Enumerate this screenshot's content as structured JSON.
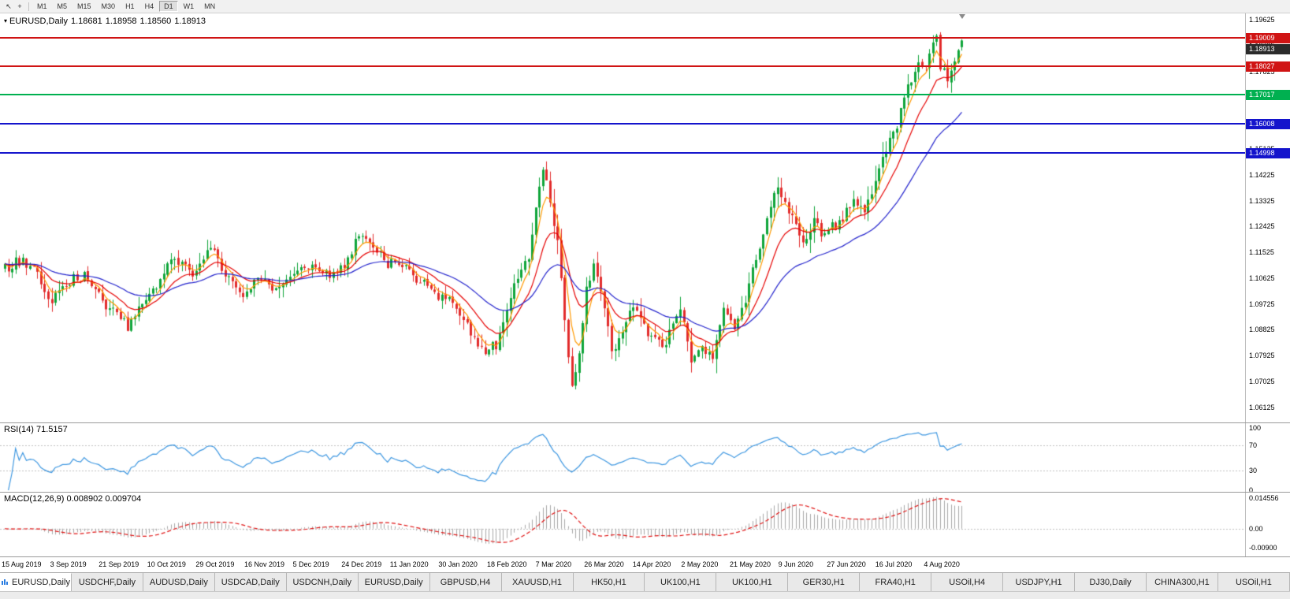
{
  "icons": {
    "cursor": "↖",
    "crosshair": "+",
    "chart_dropdown": "▾"
  },
  "toolbar": {
    "timeframes": [
      "M1",
      "M5",
      "M15",
      "M30",
      "H1",
      "H4",
      "D1",
      "W1",
      "MN"
    ],
    "active_timeframe": "D1"
  },
  "chart": {
    "symbol_label": "EURUSD,Daily",
    "ohlc": {
      "open": "1.18681",
      "high": "1.18958",
      "low": "1.18560",
      "close": "1.18913"
    },
    "price_axis_ticks": [
      {
        "label": "1.19625",
        "value": 1.19625
      },
      {
        "label": "1.18725",
        "value": 1.18725
      },
      {
        "label": "1.17825",
        "value": 1.17825
      },
      {
        "label": "1.16925",
        "value": 1.16925
      },
      {
        "label": "1.16025",
        "value": 1.16025
      },
      {
        "label": "1.15125",
        "value": 1.15125
      },
      {
        "label": "1.14225",
        "value": 1.14225
      },
      {
        "label": "1.13325",
        "value": 1.13325
      },
      {
        "label": "1.12425",
        "value": 1.12425
      },
      {
        "label": "1.11525",
        "value": 1.11525
      },
      {
        "label": "1.10625",
        "value": 1.10625
      },
      {
        "label": "1.09725",
        "value": 1.09725
      },
      {
        "label": "1.08825",
        "value": 1.08825
      },
      {
        "label": "1.07925",
        "value": 1.07925
      },
      {
        "label": "1.07025",
        "value": 1.07025
      },
      {
        "label": "1.06125",
        "value": 1.06125
      }
    ],
    "hlines": [
      {
        "label": "1.19009",
        "value": 1.19009,
        "color": "#d01414"
      },
      {
        "label": "1.18027",
        "value": 1.18027,
        "color": "#d01414"
      },
      {
        "label": "1.17017",
        "value": 1.17017,
        "color": "#00b050"
      },
      {
        "label": "1.16008",
        "value": 1.16008,
        "color": "#1414cc"
      },
      {
        "label": "1.14998",
        "value": 1.14998,
        "color": "#1414cc"
      }
    ],
    "current_price_tag": {
      "label": "1.18913",
      "value": 1.18913,
      "bg": "#2b2b2b"
    },
    "indicators": {
      "rsi": {
        "label": "RSI(14) 71.5157",
        "color": "#3c96e0",
        "axis": [
          {
            "label": "100",
            "value": 100
          },
          {
            "label": "70",
            "value": 70
          },
          {
            "label": "30",
            "value": 30
          },
          {
            "label": "0",
            "value": 0
          }
        ],
        "levels": [
          70,
          30
        ]
      },
      "macd": {
        "label": "MACD(12,26,9) 0.008902 0.009704",
        "hist_color": "#a8a8a8",
        "signal_color": "#e01414",
        "axis": [
          {
            "label": "0.014556",
            "value": 0.014556
          },
          {
            "label": "0.00",
            "value": 0
          },
          {
            "label": "-0.00900",
            "value": -0.009
          }
        ]
      }
    },
    "colors": {
      "up": "#0fa53a",
      "down": "#e22c2c",
      "ma_fast": "#ff9900",
      "ma_mid": "#e60000",
      "ma_slow": "#2323cc"
    }
  },
  "chart_data": {
    "type": "candlestick",
    "symbol": "EURUSD",
    "period": "Daily",
    "title": "EURUSD,Daily 1.18681 1.18958 1.18560 1.18913",
    "ohlc_current": {
      "open": 1.18681,
      "high": 1.18958,
      "low": 1.1856,
      "close": 1.18913
    },
    "num_candles": 266,
    "y_axis_range": [
      1.0565,
      1.1972
    ],
    "price_anchors": [
      [
        0,
        1.1095
      ],
      [
        4,
        1.1125
      ],
      [
        9,
        1.108
      ],
      [
        13,
        1.0975
      ],
      [
        17,
        1.104
      ],
      [
        22,
        1.1075
      ],
      [
        27,
        1.0985
      ],
      [
        31,
        1.093
      ],
      [
        34,
        1.0895
      ],
      [
        38,
        1.0975
      ],
      [
        43,
        1.1045
      ],
      [
        47,
        1.1135
      ],
      [
        52,
        1.108
      ],
      [
        57,
        1.116
      ],
      [
        61,
        1.107
      ],
      [
        66,
        1.101
      ],
      [
        71,
        1.1075
      ],
      [
        75,
        1.1015
      ],
      [
        80,
        1.108
      ],
      [
        85,
        1.111
      ],
      [
        90,
        1.1075
      ],
      [
        95,
        1.1125
      ],
      [
        98,
        1.1215
      ],
      [
        103,
        1.116
      ],
      [
        106,
        1.112
      ],
      [
        111,
        1.1095
      ],
      [
        116,
        1.1035
      ],
      [
        120,
        1.1005
      ],
      [
        126,
        1.095
      ],
      [
        130,
        1.086
      ],
      [
        133,
        1.079
      ],
      [
        137,
        1.0855
      ],
      [
        141,
        1.103
      ],
      [
        145,
        1.1135
      ],
      [
        147,
        1.129
      ],
      [
        149,
        1.144
      ],
      [
        151,
        1.132
      ],
      [
        153,
        1.1175
      ],
      [
        155,
        1.0915
      ],
      [
        157,
        1.068
      ],
      [
        159,
        1.0795
      ],
      [
        161,
        1.103
      ],
      [
        163,
        1.11
      ],
      [
        165,
        1.103
      ],
      [
        168,
        1.08
      ],
      [
        171,
        1.087
      ],
      [
        174,
        1.0975
      ],
      [
        178,
        1.0868
      ],
      [
        182,
        1.082
      ],
      [
        184,
        1.0878
      ],
      [
        187,
        1.0958
      ],
      [
        190,
        1.079
      ],
      [
        193,
        1.0818
      ],
      [
        196,
        1.0792
      ],
      [
        199,
        1.0948
      ],
      [
        202,
        1.0895
      ],
      [
        205,
        1.099
      ],
      [
        208,
        1.1135
      ],
      [
        211,
        1.125
      ],
      [
        214,
        1.139
      ],
      [
        217,
        1.1298
      ],
      [
        219,
        1.1244
      ],
      [
        221,
        1.118
      ],
      [
        224,
        1.1258
      ],
      [
        226,
        1.122
      ],
      [
        229,
        1.1242
      ],
      [
        232,
        1.1275
      ],
      [
        235,
        1.133
      ],
      [
        238,
        1.1282
      ],
      [
        241,
        1.14
      ],
      [
        244,
        1.1512
      ],
      [
        247,
        1.1592
      ],
      [
        250,
        1.1722
      ],
      [
        253,
        1.18
      ],
      [
        255,
        1.1785
      ],
      [
        257,
        1.1885
      ],
      [
        258,
        1.1902
      ],
      [
        259,
        1.181
      ],
      [
        261,
        1.1748
      ],
      [
        263,
        1.1818
      ],
      [
        265,
        1.1891
      ]
    ],
    "horizontal_levels": [
      1.19009,
      1.18027,
      1.17017,
      1.16008,
      1.14998
    ],
    "moving_averages": [
      {
        "period": 5,
        "color": "#ff9900"
      },
      {
        "period": 13,
        "color": "#e60000"
      },
      {
        "period": 34,
        "color": "#2323cc"
      }
    ],
    "rsi": {
      "period": 14,
      "current": 71.5157,
      "levels": [
        30,
        70
      ],
      "range": [
        0,
        100
      ]
    },
    "macd": {
      "fast": 12,
      "slow": 26,
      "signal": 9,
      "current_main": 0.008902,
      "current_signal": 0.009704,
      "axis_max": 0.014556,
      "axis_min": -0.009
    },
    "x_axis_dates": [
      "15 Aug 2019",
      "3 Sep 2019",
      "21 Sep 2019",
      "10 Oct 2019",
      "29 Oct 2019",
      "16 Nov 2019",
      "5 Dec 2019",
      "24 Dec 2019",
      "11 Jan 2020",
      "30 Jan 2020",
      "18 Feb 2020",
      "7 Mar 2020",
      "26 Mar 2020",
      "14 Apr 2020",
      "2 May 2020",
      "21 May 2020",
      "9 Jun 2020",
      "27 Jun 2020",
      "16 Jul 2020",
      "4 Aug 2020"
    ]
  },
  "tabs": [
    {
      "label": "EURUSD,Daily",
      "active": true
    },
    {
      "label": "USDCHF,Daily",
      "active": false
    },
    {
      "label": "AUDUSD,Daily",
      "active": false
    },
    {
      "label": "USDCAD,Daily",
      "active": false
    },
    {
      "label": "USDCNH,Daily",
      "active": false
    },
    {
      "label": "EURUSD,Daily",
      "active": false
    },
    {
      "label": "GBPUSD,H4",
      "active": false
    },
    {
      "label": "XAUUSD,H1",
      "active": false
    },
    {
      "label": "HK50,H1",
      "active": false
    },
    {
      "label": "UK100,H1",
      "active": false
    },
    {
      "label": "UK100,H1",
      "active": false
    },
    {
      "label": "GER30,H1",
      "active": false
    },
    {
      "label": "FRA40,H1",
      "active": false
    },
    {
      "label": "USOil,H4",
      "active": false
    },
    {
      "label": "USDJPY,H1",
      "active": false
    },
    {
      "label": "DJ30,Daily",
      "active": false
    },
    {
      "label": "CHINA300,H1",
      "active": false
    },
    {
      "label": "USOil,H1",
      "active": false
    }
  ]
}
